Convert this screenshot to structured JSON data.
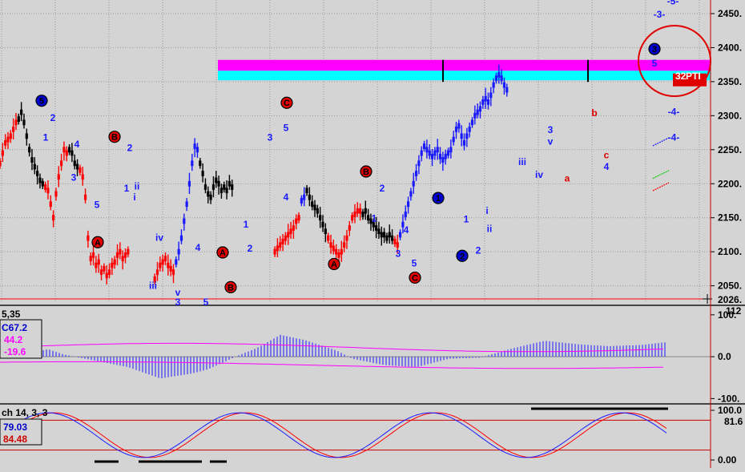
{
  "chart_data": [
    {
      "type": "bar",
      "subtype": "ohlc-price",
      "yaxis_side": "right",
      "ylim": [
        2026,
        2470
      ],
      "yticks": [
        2050,
        2100,
        2150,
        2200,
        2250,
        2300,
        2350,
        2400,
        2450
      ],
      "ytick_labels": [
        "2050.",
        "2100.",
        "2150.",
        "2200.",
        "2250.",
        "2300.",
        "2350.",
        "2400.",
        "2450."
      ],
      "last_price_label": "2026.",
      "grid": true,
      "target_zone": {
        "magenta": [
          2366,
          2382
        ],
        "cyan": [
          2352,
          2366
        ]
      },
      "pti_value": "32",
      "pti_label": "PTI",
      "colors": {
        "up": "#1a1aff",
        "down": "#ff0000",
        "neutral": "#000000",
        "magenta": "#ff00ff",
        "cyan": "#00ffff"
      },
      "segments": [
        {
          "color": "red",
          "points": [
            2230,
            2245,
            2260,
            2265,
            2270,
            2280,
            2290
          ]
        },
        {
          "color": "black",
          "points": [
            2295,
            2305,
            2290,
            2270,
            2250,
            2235,
            2225,
            2215,
            2205,
            2200
          ]
        },
        {
          "color": "red",
          "points": [
            2195,
            2190,
            2170,
            2150,
            2185,
            2210,
            2230,
            2250,
            2245
          ]
        },
        {
          "color": "black",
          "points": [
            2250,
            2245,
            2230,
            2225
          ]
        },
        {
          "color": "red",
          "points": [
            2220,
            2210,
            2180,
            2120,
            2090,
            2095,
            2080,
            2085,
            2070,
            2075,
            2065,
            2070,
            2080,
            2085,
            2095,
            2100,
            2090,
            2095,
            2100
          ]
        },
        {
          "color": "red",
          "points": [
            2060,
            2070,
            2080,
            2085,
            2090,
            2080,
            2075,
            2070
          ]
        },
        {
          "color": "blue",
          "points": [
            2085,
            2100,
            2120,
            2145,
            2170,
            2200,
            2230,
            2255,
            2250
          ]
        },
        {
          "color": "black",
          "points": [
            2230,
            2215,
            2195,
            2185,
            2180,
            2195,
            2205,
            2200,
            2190,
            2195,
            2190,
            2200,
            2195
          ]
        },
        {
          "color": "red",
          "points": [
            2100,
            2105,
            2110,
            2115,
            2120,
            2125,
            2130,
            2135,
            2145,
            2150
          ]
        },
        {
          "color": "blue",
          "points": [
            2175,
            2180
          ]
        },
        {
          "color": "black",
          "points": [
            2190,
            2180,
            2170,
            2165,
            2160,
            2150,
            2140,
            2130
          ]
        },
        {
          "color": "red",
          "points": [
            2120,
            2110,
            2105,
            2100,
            2095,
            2100,
            2110,
            2120,
            2135
          ]
        },
        {
          "color": "red",
          "points": [
            2150,
            2155,
            2160,
            2160
          ]
        },
        {
          "color": "black",
          "points": [
            2155,
            2160,
            2150,
            2145,
            2140,
            2135,
            2130,
            2125,
            2125,
            2120,
            2125,
            2120
          ]
        },
        {
          "color": "red",
          "points": [
            2115,
            2110
          ]
        },
        {
          "color": "blue",
          "points": [
            2125,
            2140,
            2155,
            2170,
            2185,
            2200,
            2215,
            2230,
            2245,
            2255,
            2250,
            2245,
            2240,
            2245,
            2250,
            2240,
            2235,
            2240,
            2245,
            2250,
            2265,
            2280,
            2285,
            2270,
            2260,
            2270,
            2280,
            2290,
            2300,
            2305,
            2310,
            2320,
            2325,
            2320,
            2330,
            2345,
            2355,
            2360,
            2355,
            2345,
            2338
          ]
        }
      ],
      "annotations": [
        {
          "text": "5",
          "style": "circle-blue",
          "x": 52,
          "price": 2322
        },
        {
          "text": "2",
          "style": "blue",
          "x": 66,
          "price": 2297
        },
        {
          "text": "1",
          "style": "blue",
          "x": 57,
          "price": 2268
        },
        {
          "text": "4",
          "style": "blue",
          "x": 96,
          "price": 2258
        },
        {
          "text": "3",
          "style": "blue",
          "x": 92,
          "price": 2209
        },
        {
          "text": "5",
          "style": "blue",
          "x": 121,
          "price": 2169
        },
        {
          "text": "A",
          "style": "circle-red",
          "x": 122,
          "price": 2114
        },
        {
          "text": "B",
          "style": "circle-red",
          "x": 143,
          "price": 2269
        },
        {
          "text": "2",
          "style": "blue",
          "x": 162,
          "price": 2253
        },
        {
          "text": "1",
          "style": "blue",
          "x": 158,
          "price": 2193
        },
        {
          "text": "ii",
          "style": "blue",
          "x": 171,
          "price": 2196
        },
        {
          "text": "i",
          "style": "blue",
          "x": 168,
          "price": 2180
        },
        {
          "text": "iv",
          "style": "blue",
          "x": 199,
          "price": 2121
        },
        {
          "text": "4",
          "style": "blue",
          "x": 247,
          "price": 2106
        },
        {
          "text": "iii",
          "style": "blue",
          "x": 191,
          "price": 2050
        },
        {
          "text": "v",
          "style": "blue",
          "x": 222,
          "price": 2040
        },
        {
          "text": "3",
          "style": "blue",
          "x": 222,
          "price": 2026
        },
        {
          "text": "5",
          "style": "blue",
          "x": 257,
          "price": 2026
        },
        {
          "text": "A",
          "style": "circle-red",
          "x": 278,
          "price": 2099
        },
        {
          "text": "B",
          "style": "circle-red",
          "x": 288,
          "price": 2048
        },
        {
          "text": "1",
          "style": "blue",
          "x": 307,
          "price": 2140
        },
        {
          "text": "2",
          "style": "blue",
          "x": 312,
          "price": 2105
        },
        {
          "text": "3",
          "style": "blue",
          "x": 337,
          "price": 2268
        },
        {
          "text": "5",
          "style": "blue",
          "x": 357,
          "price": 2282
        },
        {
          "text": "C",
          "style": "circle-red",
          "x": 358,
          "price": 2319
        },
        {
          "text": "4",
          "style": "blue",
          "x": 357,
          "price": 2180
        },
        {
          "text": "B",
          "style": "circle-red",
          "x": 457,
          "price": 2218
        },
        {
          "text": "2",
          "style": "blue",
          "x": 477,
          "price": 2193
        },
        {
          "text": "1",
          "style": "blue",
          "x": 467,
          "price": 2149
        },
        {
          "text": "A",
          "style": "circle-red",
          "x": 417,
          "price": 2082
        },
        {
          "text": "4",
          "style": "blue",
          "x": 507,
          "price": 2132
        },
        {
          "text": "3",
          "style": "blue",
          "x": 497,
          "price": 2097
        },
        {
          "text": "5",
          "style": "blue",
          "x": 517,
          "price": 2083
        },
        {
          "text": "C",
          "style": "circle-red",
          "x": 518,
          "price": 2062
        },
        {
          "text": "1",
          "style": "circle-blue",
          "x": 547,
          "price": 2179
        },
        {
          "text": "1",
          "style": "blue",
          "x": 582,
          "price": 2148
        },
        {
          "text": "2",
          "style": "circle-blue",
          "x": 577,
          "price": 2094
        },
        {
          "text": "2",
          "style": "blue",
          "x": 597,
          "price": 2102
        },
        {
          "text": "i",
          "style": "blue",
          "x": 608,
          "price": 2160
        },
        {
          "text": "ii",
          "style": "blue",
          "x": 611,
          "price": 2134
        },
        {
          "text": "iii",
          "style": "blue",
          "x": 652,
          "price": 2232
        },
        {
          "text": "iv",
          "style": "blue",
          "x": 673,
          "price": 2213
        },
        {
          "text": "3",
          "style": "blue",
          "x": 687,
          "price": 2279
        },
        {
          "text": "v",
          "style": "blue",
          "x": 687,
          "price": 2262
        },
        {
          "text": "a",
          "style": "red",
          "x": 708,
          "price": 2208
        },
        {
          "text": "b",
          "style": "red",
          "x": 742,
          "price": 2304
        },
        {
          "text": "c",
          "style": "red",
          "x": 757,
          "price": 2242
        },
        {
          "text": "4",
          "style": "blue",
          "x": 757,
          "price": 2225
        },
        {
          "text": "3",
          "style": "circle-blue",
          "x": 817,
          "price": 2398
        },
        {
          "text": "5",
          "style": "blue",
          "x": 817,
          "price": 2377
        },
        {
          "text": "-3-",
          "style": "blue",
          "x": 823,
          "price": 2449
        },
        {
          "text": "-5-",
          "style": "blue",
          "x": 840,
          "price": 2468
        },
        {
          "text": "-4-",
          "style": "blue",
          "x": 841,
          "price": 2306
        },
        {
          "text": "-4-",
          "style": "blue",
          "x": 841,
          "price": 2268
        }
      ]
    },
    {
      "type": "bar",
      "subtype": "macd-histogram",
      "title_fragment": "5,35",
      "ylim": [
        -105,
        115
      ],
      "yticks": [
        100,
        0,
        -100
      ],
      "ytick_labels": [
        "100.",
        "0.0",
        "-100."
      ],
      "top_label": "112",
      "values_box": [
        {
          "text": "67.2",
          "color": "#0000cc",
          "prefix": "C"
        },
        {
          "text": "44.2",
          "color": "#ff00ff",
          "prefix": ""
        },
        {
          "text": "-19.6",
          "color": "#ff00ff",
          "prefix": ""
        }
      ]
    },
    {
      "type": "line",
      "subtype": "stochastic",
      "title": "ch 14, 3, 3",
      "ylim": [
        0,
        100
      ],
      "yticks": [
        100,
        0
      ],
      "ytick_labels": [
        "100.0",
        "0.00"
      ],
      "level_lines": [
        80,
        20
      ],
      "right_label": "81.6",
      "values_box": [
        {
          "text": "79.03",
          "color": "#0000cc"
        },
        {
          "text": "84.48",
          "color": "#cc0000"
        }
      ]
    }
  ]
}
